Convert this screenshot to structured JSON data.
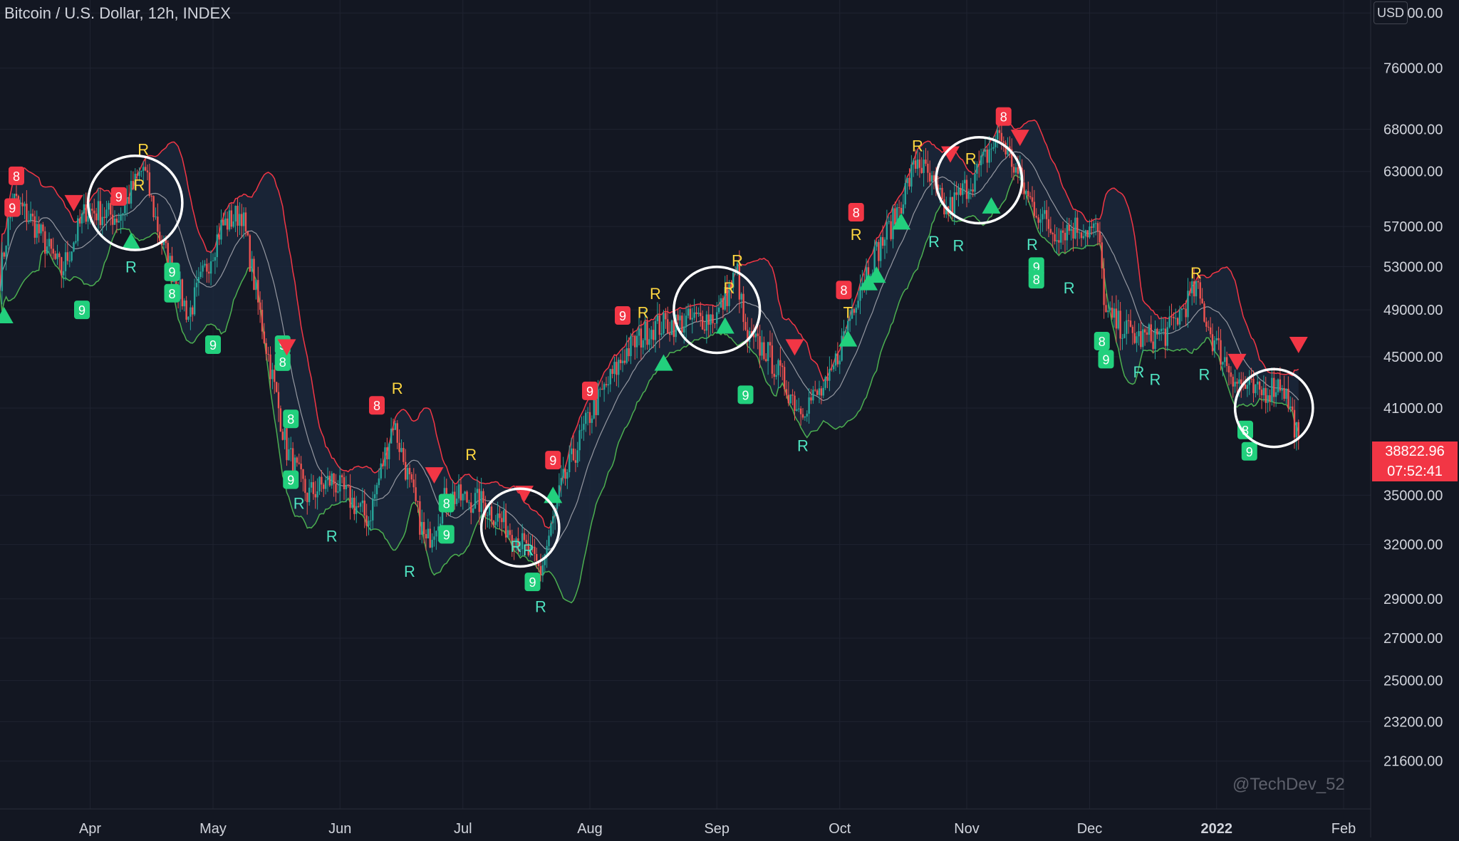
{
  "header": {
    "title": "Bitcoin / U.S. Dollar, 12h, INDEX",
    "currency": "USD"
  },
  "price_tag": {
    "price": "38822.96",
    "countdown": "07:52:41"
  },
  "watermark": "@TechDev_52",
  "colors": {
    "background": "#131722",
    "grid": "#1f2330",
    "upper_band": "#f23645",
    "lower_band": "#4caf50",
    "basis": "#9598a1",
    "band_fill": "#1c2a3d",
    "candle_up": "#26a69a",
    "candle_down": "#ef5350",
    "sell": "#f23645",
    "buy": "#22d07d",
    "r_top": "#ffd740",
    "r_bottom": "#4fe3c1",
    "highlight": "#ff9800"
  },
  "chart_data": {
    "type": "candlestick",
    "axis_left_date": "2021-03-10",
    "x_tick_labels": [
      {
        "date": "2021-04-01",
        "label": "Apr"
      },
      {
        "date": "2021-05-01",
        "label": "May"
      },
      {
        "date": "2021-06-01",
        "label": "Jun"
      },
      {
        "date": "2021-07-01",
        "label": "Jul"
      },
      {
        "date": "2021-08-01",
        "label": "Aug"
      },
      {
        "date": "2021-09-01",
        "label": "Sep"
      },
      {
        "date": "2021-10-01",
        "label": "Oct"
      },
      {
        "date": "2021-11-01",
        "label": "Nov"
      },
      {
        "date": "2021-12-01",
        "label": "Dec"
      },
      {
        "date": "2022-01-01",
        "label": "2022"
      },
      {
        "date": "2022-02-01",
        "label": "Feb"
      }
    ],
    "y_scale": "log",
    "y_range": [
      19800,
      86000
    ],
    "y_ticks": [
      {
        "value": 84000,
        "label": "84000.00"
      },
      {
        "value": 76000,
        "label": "76000.00"
      },
      {
        "value": 68000,
        "label": "68000.00"
      },
      {
        "value": 63000,
        "label": "63000.00"
      },
      {
        "value": 57000,
        "label": "57000.00"
      },
      {
        "value": 53000,
        "label": "53000.00"
      },
      {
        "value": 49000,
        "label": "49000.00"
      },
      {
        "value": 45000,
        "label": "45000.00"
      },
      {
        "value": 41000,
        "label": "41000.00"
      },
      {
        "value": 35000,
        "label": "35000.00"
      },
      {
        "value": 32000,
        "label": "32000.00"
      },
      {
        "value": 29000,
        "label": "29000.00"
      },
      {
        "value": 27000,
        "label": "27000.00"
      },
      {
        "value": 25000,
        "label": "25000.00"
      },
      {
        "value": 23200,
        "label": "23200.00"
      },
      {
        "value": 21600,
        "label": "21600.00"
      }
    ],
    "grid": true,
    "price_path": [
      [
        "2021-03-10",
        52000
      ],
      [
        "2021-03-13",
        60000
      ],
      [
        "2021-03-18",
        57500
      ],
      [
        "2021-03-25",
        52500
      ],
      [
        "2021-03-31",
        58800
      ],
      [
        "2021-04-08",
        58000
      ],
      [
        "2021-04-14",
        63500
      ],
      [
        "2021-04-18",
        56000
      ],
      [
        "2021-04-25",
        48500
      ],
      [
        "2021-05-03",
        57000
      ],
      [
        "2021-05-08",
        58500
      ],
      [
        "2021-05-12",
        49500
      ],
      [
        "2021-05-19",
        38000
      ],
      [
        "2021-05-24",
        35000
      ],
      [
        "2021-05-30",
        36000
      ],
      [
        "2021-06-08",
        33500
      ],
      [
        "2021-06-14",
        40000
      ],
      [
        "2021-06-22",
        32000
      ],
      [
        "2021-06-27",
        35000
      ],
      [
        "2021-07-06",
        34500
      ],
      [
        "2021-07-14",
        32500
      ],
      [
        "2021-07-20",
        30500
      ],
      [
        "2021-07-25",
        35500
      ],
      [
        "2021-08-01",
        40500
      ],
      [
        "2021-08-10",
        45500
      ],
      [
        "2021-08-16",
        47500
      ],
      [
        "2021-08-25",
        48000
      ],
      [
        "2021-09-01",
        48500
      ],
      [
        "2021-09-06",
        52500
      ],
      [
        "2021-09-08",
        46500
      ],
      [
        "2021-09-13",
        45500
      ],
      [
        "2021-09-21",
        41000
      ],
      [
        "2021-09-28",
        42500
      ],
      [
        "2021-10-06",
        51500
      ],
      [
        "2021-10-14",
        57500
      ],
      [
        "2021-10-20",
        64500
      ],
      [
        "2021-10-27",
        58500
      ],
      [
        "2021-11-03",
        62500
      ],
      [
        "2021-11-09",
        67500
      ],
      [
        "2021-11-16",
        60000
      ],
      [
        "2021-11-22",
        56500
      ],
      [
        "2021-11-28",
        57000
      ],
      [
        "2021-12-03",
        56500
      ],
      [
        "2021-12-05",
        48500
      ],
      [
        "2021-12-13",
        46500
      ],
      [
        "2021-12-20",
        47000
      ],
      [
        "2021-12-27",
        51000
      ],
      [
        "2021-12-31",
        46500
      ],
      [
        "2022-01-06",
        43000
      ],
      [
        "2022-01-11",
        42000
      ],
      [
        "2022-01-17",
        43000
      ],
      [
        "2022-01-21",
        38822.96
      ]
    ],
    "markers": [
      {
        "date": "2021-03-13",
        "price": 59000,
        "kind": "sell-count",
        "text": "9"
      },
      {
        "date": "2021-03-14",
        "price": 62500,
        "kind": "sell-count",
        "text": "8"
      },
      {
        "date": "2021-03-30",
        "price": 49000,
        "kind": "buy-count",
        "text": "9"
      },
      {
        "date": "2021-04-08",
        "price": 60200,
        "kind": "sell-count",
        "text": "9"
      },
      {
        "date": "2021-04-14",
        "price": 65600,
        "kind": "r-top",
        "text": "R"
      },
      {
        "date": "2021-04-13",
        "price": 61500,
        "kind": "r-top",
        "text": "R"
      },
      {
        "date": "2021-04-11",
        "price": 53000,
        "kind": "r-bottom",
        "text": "R"
      },
      {
        "date": "2021-04-21",
        "price": 52500,
        "kind": "buy-count",
        "text": "9"
      },
      {
        "date": "2021-04-21",
        "price": 50500,
        "kind": "buy-count",
        "text": "8"
      },
      {
        "date": "2021-05-01",
        "price": 46000,
        "kind": "buy-count",
        "text": "9"
      },
      {
        "date": "2021-05-18",
        "price": 46000,
        "kind": "buy-count",
        "text": "9"
      },
      {
        "date": "2021-05-18",
        "price": 44600,
        "kind": "buy-count",
        "text": "8"
      },
      {
        "date": "2021-05-20",
        "price": 40200,
        "kind": "buy-count",
        "text": "8"
      },
      {
        "date": "2021-05-20",
        "price": 36000,
        "kind": "buy-count",
        "text": "9"
      },
      {
        "date": "2021-05-22",
        "price": 34500,
        "kind": "r-bottom",
        "text": "R"
      },
      {
        "date": "2021-05-30",
        "price": 32500,
        "kind": "r-bottom",
        "text": "R"
      },
      {
        "date": "2021-06-10",
        "price": 41200,
        "kind": "sell-count",
        "text": "8"
      },
      {
        "date": "2021-06-15",
        "price": 42500,
        "kind": "r-top",
        "text": "R"
      },
      {
        "date": "2021-06-18",
        "price": 30500,
        "kind": "r-bottom",
        "text": "R"
      },
      {
        "date": "2021-06-27",
        "price": 34500,
        "kind": "buy-count",
        "text": "8"
      },
      {
        "date": "2021-06-27",
        "price": 32600,
        "kind": "buy-count",
        "text": "9"
      },
      {
        "date": "2021-07-14",
        "price": 31900,
        "kind": "r-bottom",
        "text": "R"
      },
      {
        "date": "2021-07-17",
        "price": 31700,
        "kind": "r-bottom",
        "text": "R"
      },
      {
        "date": "2021-07-18",
        "price": 29900,
        "kind": "buy-count",
        "text": "9"
      },
      {
        "date": "2021-07-20",
        "price": 28600,
        "kind": "r-bottom",
        "text": "R"
      },
      {
        "date": "2021-07-23",
        "price": 37300,
        "kind": "sell-count",
        "text": "9"
      },
      {
        "date": "2021-07-03",
        "price": 37700,
        "kind": "r-top",
        "text": "R"
      },
      {
        "date": "2021-08-01",
        "price": 42300,
        "kind": "sell-count",
        "text": "9"
      },
      {
        "date": "2021-08-09",
        "price": 48500,
        "kind": "sell-count",
        "text": "9"
      },
      {
        "date": "2021-08-17",
        "price": 50500,
        "kind": "r-top",
        "text": "R"
      },
      {
        "date": "2021-08-14",
        "price": 48800,
        "kind": "r-top",
        "text": "R"
      },
      {
        "date": "2021-09-04",
        "price": 51000,
        "kind": "r-top",
        "text": "R"
      },
      {
        "date": "2021-09-06",
        "price": 53600,
        "kind": "r-top",
        "text": "R"
      },
      {
        "date": "2021-09-08",
        "price": 42000,
        "kind": "buy-count",
        "text": "9"
      },
      {
        "date": "2021-09-22",
        "price": 38300,
        "kind": "r-bottom",
        "text": "R"
      },
      {
        "date": "2021-10-02",
        "price": 50800,
        "kind": "sell-count",
        "text": "8"
      },
      {
        "date": "2021-10-03",
        "price": 48800,
        "kind": "r-top",
        "text": "T"
      },
      {
        "date": "2021-10-05",
        "price": 56200,
        "kind": "r-top",
        "text": "R"
      },
      {
        "date": "2021-10-05",
        "price": 58500,
        "kind": "sell-count",
        "text": "8"
      },
      {
        "date": "2021-10-20",
        "price": 66000,
        "kind": "r-top",
        "text": "R"
      },
      {
        "date": "2021-10-24",
        "price": 55500,
        "kind": "r-bottom",
        "text": "R"
      },
      {
        "date": "2021-10-30",
        "price": 55100,
        "kind": "r-bottom",
        "text": "R"
      },
      {
        "date": "2021-11-02",
        "price": 64500,
        "kind": "r-top",
        "text": "R"
      },
      {
        "date": "2021-11-10",
        "price": 69600,
        "kind": "sell-count",
        "text": "8"
      },
      {
        "date": "2021-11-17",
        "price": 55200,
        "kind": "r-bottom",
        "text": "R"
      },
      {
        "date": "2021-11-18",
        "price": 53000,
        "kind": "buy-count",
        "text": "9"
      },
      {
        "date": "2021-11-18",
        "price": 51800,
        "kind": "buy-count",
        "text": "8"
      },
      {
        "date": "2021-11-26",
        "price": 51000,
        "kind": "r-bottom",
        "text": "R"
      },
      {
        "date": "2021-12-04",
        "price": 46300,
        "kind": "buy-count",
        "text": "8"
      },
      {
        "date": "2021-12-05",
        "price": 44800,
        "kind": "buy-count",
        "text": "9"
      },
      {
        "date": "2021-12-13",
        "price": 43800,
        "kind": "r-bottom",
        "text": "R"
      },
      {
        "date": "2021-12-17",
        "price": 43200,
        "kind": "r-bottom",
        "text": "R"
      },
      {
        "date": "2021-12-27",
        "price": 52400,
        "kind": "r-top",
        "text": "R"
      },
      {
        "date": "2021-12-29",
        "price": 43600,
        "kind": "r-bottom",
        "text": "R"
      },
      {
        "date": "2022-01-08",
        "price": 39400,
        "kind": "buy-count",
        "text": "8"
      },
      {
        "date": "2022-01-09",
        "price": 37900,
        "kind": "buy-count",
        "text": "9"
      },
      {
        "date": "2021-03-11",
        "price": 48500,
        "kind": "buy-arrow"
      },
      {
        "date": "2021-04-11",
        "price": 55500,
        "kind": "buy-arrow"
      },
      {
        "date": "2021-07-23",
        "price": 35000,
        "kind": "buy-arrow"
      },
      {
        "date": "2021-08-19",
        "price": 44500,
        "kind": "buy-arrow"
      },
      {
        "date": "2021-09-03",
        "price": 47600,
        "kind": "buy-arrow"
      },
      {
        "date": "2021-10-03",
        "price": 46500,
        "kind": "buy-arrow"
      },
      {
        "date": "2021-10-08",
        "price": 51500,
        "kind": "buy-arrow"
      },
      {
        "date": "2021-10-10",
        "price": 52200,
        "kind": "buy-arrow"
      },
      {
        "date": "2021-10-16",
        "price": 57500,
        "kind": "buy-arrow"
      },
      {
        "date": "2021-11-07",
        "price": 59200,
        "kind": "buy-arrow"
      },
      {
        "date": "2021-03-28",
        "price": 59500,
        "kind": "sell-arrow"
      },
      {
        "date": "2021-05-19",
        "price": 45800,
        "kind": "sell-arrow"
      },
      {
        "date": "2021-06-24",
        "price": 36300,
        "kind": "sell-arrow"
      },
      {
        "date": "2021-07-16",
        "price": 35100,
        "kind": "sell-arrow"
      },
      {
        "date": "2021-09-20",
        "price": 45800,
        "kind": "sell-arrow"
      },
      {
        "date": "2021-10-28",
        "price": 65000,
        "kind": "sell-arrow"
      },
      {
        "date": "2021-11-14",
        "price": 67000,
        "kind": "sell-arrow"
      },
      {
        "date": "2022-01-06",
        "price": 44600,
        "kind": "sell-arrow"
      },
      {
        "date": "2022-01-21",
        "price": 46000,
        "kind": "sell-arrow"
      }
    ],
    "annotations": [
      {
        "type": "circle",
        "date": "2021-04-12",
        "price": 59500,
        "radius_days": 11.5
      },
      {
        "type": "circle",
        "date": "2021-07-15",
        "price": 33000,
        "radius_days": 9.5
      },
      {
        "type": "circle",
        "date": "2021-09-01",
        "price": 49000,
        "radius_days": 10.5
      },
      {
        "type": "circle",
        "date": "2021-11-04",
        "price": 62000,
        "radius_days": 10.5
      },
      {
        "type": "circle",
        "date": "2022-01-15",
        "price": 41000,
        "radius_days": 9.5
      }
    ]
  }
}
